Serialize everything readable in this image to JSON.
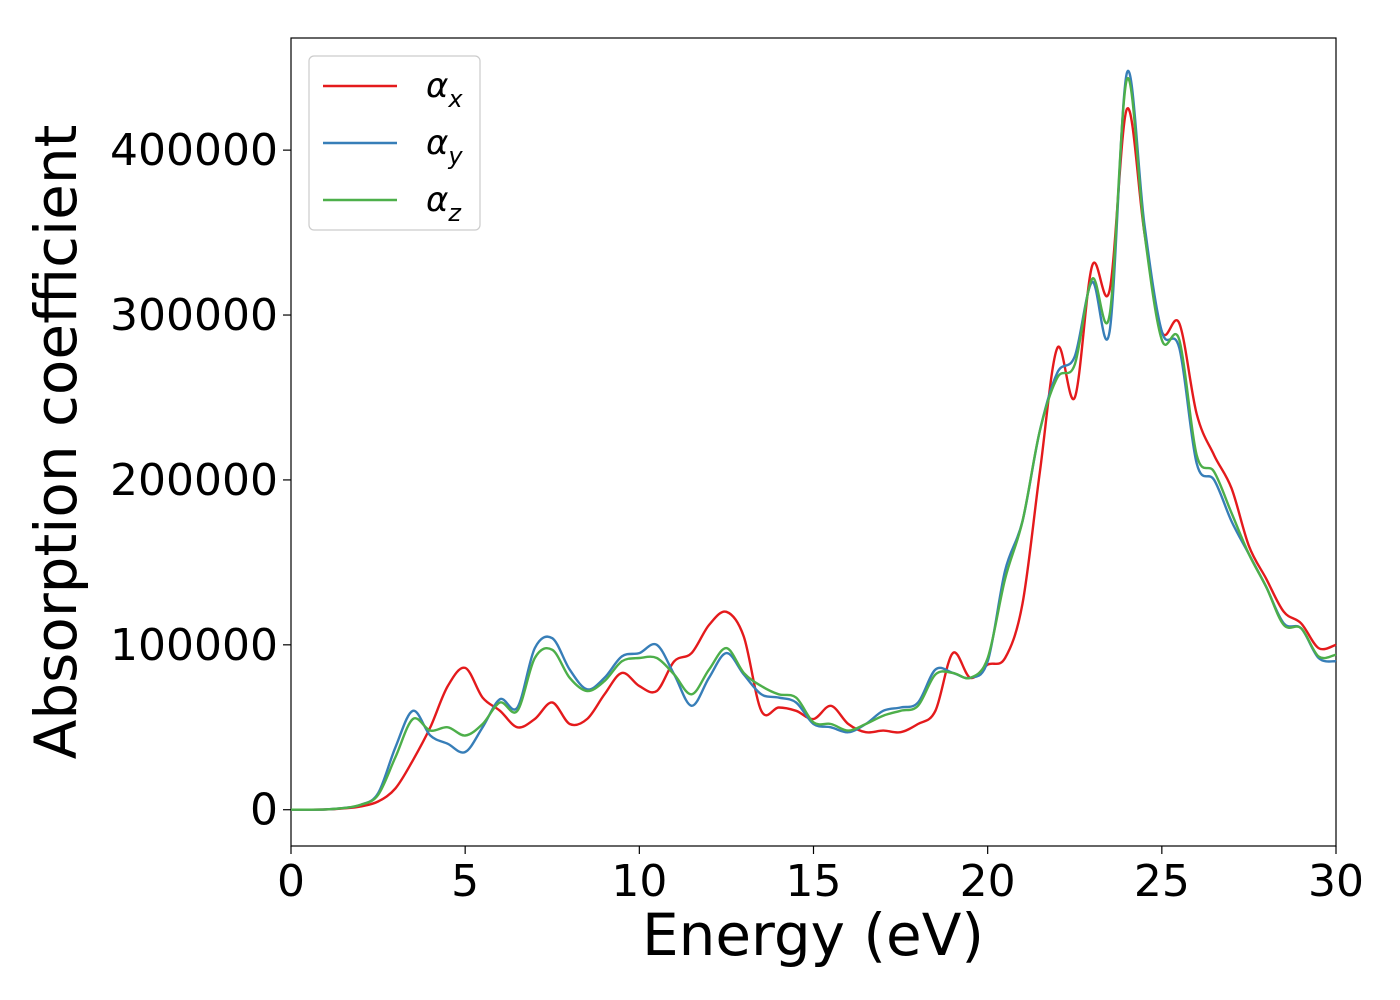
{
  "chart_data": {
    "type": "line",
    "xlabel": "Energy (eV)",
    "ylabel": "Absorption coefficient",
    "xlim": [
      0,
      30
    ],
    "ylim": [
      -22000,
      468000
    ],
    "xticks": [
      0,
      5,
      10,
      15,
      20,
      25,
      30
    ],
    "yticks": [
      0,
      100000,
      200000,
      300000,
      400000
    ],
    "grid": false,
    "legend_position": "top-left",
    "series": [
      {
        "name": "α_x",
        "symbol": "α",
        "subscript": "x",
        "color": "#e41a1c",
        "x": [
          0,
          1,
          1.5,
          2,
          2.5,
          3,
          3.5,
          4,
          4.5,
          5,
          5.5,
          6,
          6.5,
          7,
          7.5,
          8,
          8.5,
          9,
          9.5,
          10,
          10.5,
          11,
          11.5,
          12,
          12.5,
          13,
          13.5,
          14,
          14.5,
          15,
          15.5,
          16,
          16.5,
          17,
          17.5,
          18,
          18.5,
          19,
          19.5,
          20,
          20.5,
          21,
          21.5,
          22,
          22.5,
          23,
          23.5,
          24,
          24.5,
          25,
          25.5,
          26,
          26.5,
          27,
          27.5,
          28,
          28.5,
          29,
          29.5,
          30
        ],
        "y": [
          0,
          200,
          800,
          2000,
          5000,
          13000,
          30000,
          50000,
          75000,
          86000,
          68000,
          60000,
          50000,
          55000,
          65000,
          52000,
          55000,
          70000,
          83000,
          75000,
          72000,
          90000,
          95000,
          112000,
          120000,
          105000,
          60000,
          62000,
          60000,
          55000,
          63000,
          52000,
          47000,
          48000,
          47000,
          52000,
          60000,
          95000,
          80000,
          88000,
          92000,
          125000,
          205000,
          280000,
          250000,
          330000,
          315000,
          425000,
          350000,
          290000,
          295000,
          240000,
          215000,
          195000,
          160000,
          140000,
          120000,
          113000,
          98000,
          100000
        ]
      },
      {
        "name": "α_y",
        "symbol": "α",
        "subscript": "y",
        "color": "#377eb8",
        "x": [
          0,
          1,
          1.5,
          2,
          2.5,
          3,
          3.5,
          4,
          4.5,
          5,
          5.5,
          6,
          6.5,
          7,
          7.5,
          8,
          8.5,
          9,
          9.5,
          10,
          10.5,
          11,
          11.5,
          12,
          12.5,
          13,
          13.5,
          14,
          14.5,
          15,
          15.5,
          16,
          16.5,
          17,
          17.5,
          18,
          18.5,
          19,
          19.5,
          20,
          20.5,
          21,
          21.5,
          22,
          22.5,
          23,
          23.5,
          24,
          24.5,
          25,
          25.5,
          26,
          26.5,
          27,
          27.5,
          28,
          28.5,
          29,
          29.5,
          30
        ],
        "y": [
          0,
          200,
          1000,
          3000,
          10000,
          38000,
          60000,
          45000,
          40000,
          35000,
          50000,
          67000,
          62000,
          98000,
          104000,
          85000,
          73000,
          80000,
          93000,
          95000,
          100000,
          82000,
          63000,
          80000,
          95000,
          82000,
          70000,
          68000,
          65000,
          52000,
          50000,
          47000,
          52000,
          60000,
          62000,
          65000,
          85000,
          83000,
          80000,
          90000,
          145000,
          175000,
          230000,
          265000,
          275000,
          320000,
          290000,
          447000,
          355000,
          290000,
          280000,
          210000,
          200000,
          175000,
          155000,
          135000,
          113000,
          110000,
          92000,
          90000
        ]
      },
      {
        "name": "α_z",
        "symbol": "α",
        "subscript": "z",
        "color": "#4daf4a",
        "x": [
          0,
          1,
          1.5,
          2,
          2.5,
          3,
          3.5,
          4,
          4.5,
          5,
          5.5,
          6,
          6.5,
          7,
          7.5,
          8,
          8.5,
          9,
          9.5,
          10,
          10.5,
          11,
          11.5,
          12,
          12.5,
          13,
          13.5,
          14,
          14.5,
          15,
          15.5,
          16,
          16.5,
          17,
          17.5,
          18,
          18.5,
          19,
          19.5,
          20,
          20.5,
          21,
          21.5,
          22,
          22.5,
          23,
          23.5,
          24,
          24.5,
          25,
          25.5,
          26,
          26.5,
          27,
          27.5,
          28,
          28.5,
          29,
          29.5,
          30
        ],
        "y": [
          0,
          200,
          1000,
          3000,
          9000,
          32000,
          55000,
          48000,
          50000,
          45000,
          52000,
          65000,
          60000,
          92000,
          97000,
          80000,
          72000,
          78000,
          90000,
          92000,
          92000,
          82000,
          70000,
          85000,
          98000,
          83000,
          75000,
          70000,
          68000,
          53000,
          52000,
          48000,
          52000,
          57000,
          60000,
          63000,
          82000,
          83000,
          80000,
          92000,
          140000,
          175000,
          230000,
          262000,
          270000,
          322000,
          300000,
          443000,
          350000,
          285000,
          285000,
          215000,
          205000,
          180000,
          155000,
          135000,
          112000,
          110000,
          93000,
          94000
        ]
      }
    ]
  }
}
